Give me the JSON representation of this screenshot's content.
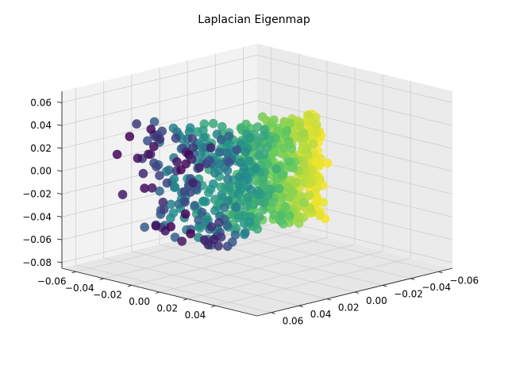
{
  "chart_data": {
    "type": "scatter",
    "projection": "3d",
    "title": "Laplacian Eigenmap",
    "colormap": "viridis",
    "colors": [
      "#440154",
      "#3b528b",
      "#21918c",
      "#5ec962",
      "#fde725"
    ],
    "marker_alpha": 0.85,
    "xlabel": "",
    "ylabel": "",
    "zlabel": "",
    "xlim": [
      -0.07,
      0.07
    ],
    "ylim": [
      -0.07,
      0.07
    ],
    "zlim": [
      -0.085,
      0.07
    ],
    "x_ticks": [
      "−0.06",
      "−0.04",
      "−0.02",
      "0.00",
      "0.02",
      "0.04",
      "0.06"
    ],
    "y_ticks": [
      "−0.06",
      "−0.04",
      "−0.02",
      "0.00",
      "0.02",
      "0.04"
    ],
    "z_ticks": [
      "−0.08",
      "−0.06",
      "−0.04",
      "−0.02",
      "0.00",
      "0.02",
      "0.04",
      "0.06"
    ],
    "x_tick_values": [
      -0.06,
      -0.04,
      -0.02,
      0.0,
      0.02,
      0.04,
      0.06
    ],
    "y_tick_values": [
      -0.06,
      -0.04,
      -0.02,
      0.0,
      0.02,
      0.04
    ],
    "z_tick_values": [
      -0.08,
      -0.06,
      -0.04,
      -0.02,
      0.0,
      0.02,
      0.04,
      0.06
    ],
    "grid": true,
    "view": {
      "elev": 30,
      "azim": -135
    },
    "legend": "none",
    "point_count": 700,
    "manifold_note": "points along a curved 2D sheet; color follows position from purple edge to yellow edge"
  }
}
